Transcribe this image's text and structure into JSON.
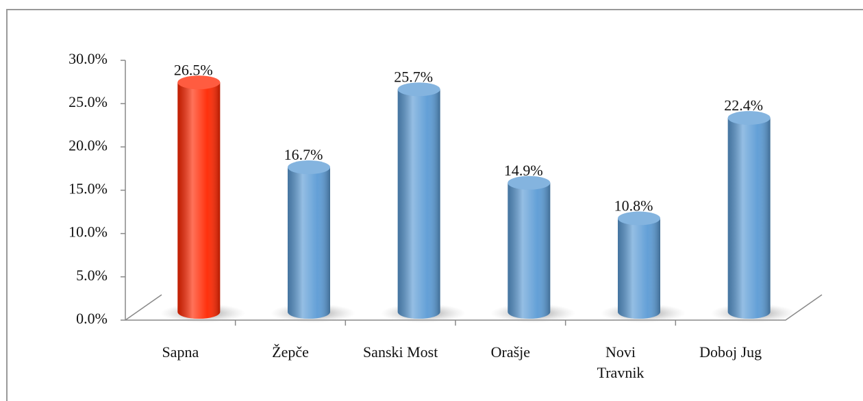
{
  "chart_data": {
    "type": "bar3d",
    "categories": [
      "Sapna",
      "Žepče",
      "Sanski Most",
      "Orašje",
      "Novi\nTravnik",
      "Doboj Jug"
    ],
    "values": [
      26.5,
      16.7,
      25.7,
      14.9,
      10.8,
      22.4
    ],
    "value_labels": [
      "26.5%",
      "16.7%",
      "25.7%",
      "14.9%",
      "10.8%",
      "22.4%"
    ],
    "colors": [
      "#ff2600",
      "#5b9bd5",
      "#5b9bd5",
      "#5b9bd5",
      "#5b9bd5",
      "#5b9bd5"
    ],
    "ylim": [
      0,
      30
    ],
    "yticks": [
      {
        "value": 0,
        "label": "0.0%"
      },
      {
        "value": 5,
        "label": "5.0%"
      },
      {
        "value": 10,
        "label": "10.0%"
      },
      {
        "value": 15,
        "label": "15.0%"
      },
      {
        "value": 20,
        "label": "20.0%"
      },
      {
        "value": 25,
        "label": "25.0%"
      },
      {
        "value": 30,
        "label": "30.0%"
      }
    ]
  }
}
